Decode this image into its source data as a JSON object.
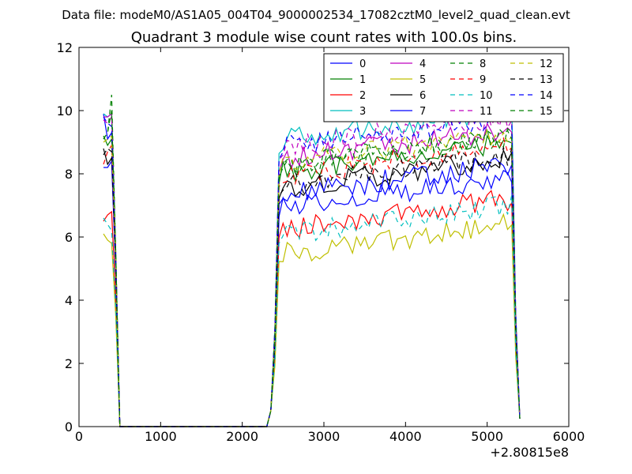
{
  "chart_data": {
    "type": "line",
    "suptitle": "Data file: modeM0/AS1A05_004T04_9000002534_17082cztM0_level2_quad_clean.evt",
    "title": "Quadrant 3 module wise count rates with 100.0s bins.",
    "xlabel": "",
    "ylabel": "",
    "x_offset_label": "+2.80815e8",
    "xlim": [
      0,
      6000
    ],
    "ylim": [
      0,
      12
    ],
    "x_ticks": [
      "0",
      "1000",
      "2000",
      "3000",
      "4000",
      "5000",
      "6000"
    ],
    "y_ticks": [
      "0",
      "2",
      "4",
      "6",
      "8",
      "10",
      "12"
    ],
    "grid": false,
    "legend_position": "top-right",
    "segments": {
      "early_x": [
        300,
        350,
        400,
        450,
        500
      ],
      "zero_x": [
        500,
        1000,
        1500,
        2000,
        2300
      ],
      "late_x": [
        2300,
        2350,
        2400,
        2450,
        2500,
        2550,
        2600,
        2650,
        2700,
        2750,
        2800,
        2850,
        2900,
        2950,
        3000,
        3050,
        3100,
        3150,
        3200,
        3250,
        3300,
        3350,
        3400,
        3450,
        3500,
        3550,
        3600,
        3650,
        3700,
        3750,
        3800,
        3850,
        3900,
        3950,
        4000,
        4050,
        4100,
        4150,
        4200,
        4250,
        4300,
        4350,
        4400,
        4450,
        4500,
        4550,
        4600,
        4650,
        4700,
        4750,
        4800,
        4850,
        4900,
        4950,
        5000,
        5050,
        5100,
        5150,
        5200,
        5250,
        5300,
        5350,
        5400
      ]
    },
    "series": [
      {
        "name": "0",
        "color": "#0000ff",
        "dash": "solid",
        "level": 7.0,
        "early": [
          9.9,
          9.1,
          9.3,
          5.0,
          0.0
        ]
      },
      {
        "name": "1",
        "color": "#008000",
        "dash": "solid",
        "level": 8.1,
        "early": [
          9.2,
          8.9,
          9.1,
          5.2,
          0.0
        ]
      },
      {
        "name": "2",
        "color": "#ff0000",
        "dash": "solid",
        "level": 6.3,
        "early": [
          6.5,
          6.7,
          6.8,
          4.0,
          0.0
        ]
      },
      {
        "name": "3",
        "color": "#00bfbf",
        "dash": "solid",
        "level": 9.1,
        "early": [
          9.9,
          9.8,
          9.9,
          5.5,
          0.0
        ]
      },
      {
        "name": "4",
        "color": "#bf00bf",
        "dash": "solid",
        "level": 8.5,
        "early": [
          9.8,
          9.8,
          9.9,
          5.4,
          0.0
        ]
      },
      {
        "name": "5",
        "color": "#bfbf00",
        "dash": "solid",
        "level": 5.5,
        "early": [
          6.1,
          5.9,
          5.8,
          3.5,
          0.0
        ]
      },
      {
        "name": "6",
        "color": "#000000",
        "dash": "solid",
        "level": 7.6,
        "early": [
          8.8,
          8.3,
          8.5,
          5.0,
          0.0
        ]
      },
      {
        "name": "7",
        "color": "#0000ff",
        "dash": "solid",
        "level": 7.4,
        "early": [
          8.2,
          8.2,
          8.4,
          4.8,
          0.0
        ]
      },
      {
        "name": "8",
        "color": "#008000",
        "dash": "dashed",
        "level": 8.3,
        "early": [
          9.1,
          9.3,
          10.5,
          5.6,
          0.0
        ]
      },
      {
        "name": "9",
        "color": "#ff0000",
        "dash": "dashed",
        "level": 8.0,
        "early": [
          8.3,
          8.7,
          8.9,
          5.1,
          0.0
        ]
      },
      {
        "name": "10",
        "color": "#00bfbf",
        "dash": "dashed",
        "level": 6.1,
        "early": [
          6.6,
          6.4,
          6.2,
          3.8,
          0.0
        ]
      },
      {
        "name": "11",
        "color": "#bf00bf",
        "dash": "dashed",
        "level": 8.9,
        "early": [
          9.7,
          9.6,
          9.8,
          5.5,
          0.0
        ]
      },
      {
        "name": "12",
        "color": "#bfbf00",
        "dash": "dashed",
        "level": 8.4,
        "early": [
          9.0,
          9.1,
          9.2,
          5.3,
          0.0
        ]
      },
      {
        "name": "13",
        "color": "#000000",
        "dash": "dashed",
        "level": 7.7,
        "early": [
          8.6,
          8.8,
          8.7,
          5.0,
          0.0
        ]
      },
      {
        "name": "14",
        "color": "#0000ff",
        "dash": "dashed",
        "level": 8.9,
        "early": [
          9.8,
          9.6,
          9.5,
          5.4,
          0.0
        ]
      },
      {
        "name": "15",
        "color": "#008000",
        "dash": "dashed",
        "level": 8.3,
        "early": [
          9.1,
          9.3,
          10.0,
          5.5,
          0.0
        ]
      }
    ]
  }
}
